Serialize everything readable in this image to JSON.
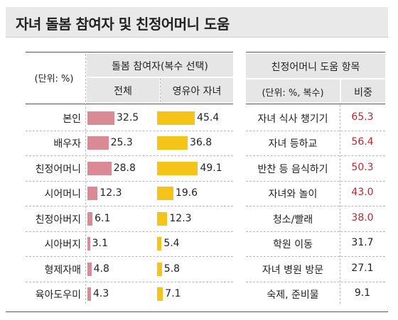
{
  "title": "자녀 돌봄 참여자 및 친정어머니 도움",
  "colors": {
    "all": "#d98a94",
    "infant": "#f4c518",
    "highlight": "#c0272d",
    "normal": "#222222"
  },
  "chart_data": [
    {
      "type": "bar",
      "unit_label": "(단위: %)",
      "group_header": "돌봄 참여자(복수 선택)",
      "categories": [
        "본인",
        "배우자",
        "친정어머니",
        "시어머니",
        "친정아버지",
        "시아버지",
        "형제자매",
        "육아도우미"
      ],
      "series": [
        {
          "name": "전체",
          "values": [
            32.5,
            25.3,
            28.8,
            12.3,
            6.1,
            3.1,
            4.8,
            4.3
          ]
        },
        {
          "name": "영유아 자녀",
          "values": [
            45.4,
            36.8,
            49.1,
            19.6,
            12.3,
            5.4,
            5.8,
            7.1
          ]
        }
      ]
    },
    {
      "type": "table",
      "header": "친정어머니 도움 항목",
      "unit_label": "(단위: %, 복수)",
      "value_header": "비중",
      "rows": [
        {
          "item": "자녀 식사 챙기기",
          "value": "65.3",
          "highlight": true
        },
        {
          "item": "자녀 등하교",
          "value": "56.4",
          "highlight": true
        },
        {
          "item": "반찬 등 음식하기",
          "value": "50.3",
          "highlight": true
        },
        {
          "item": "자녀와 놀이",
          "value": "43.0",
          "highlight": true
        },
        {
          "item": "청소/빨래",
          "value": "38.0",
          "highlight": true
        },
        {
          "item": "학원 이동",
          "value": "31.7",
          "highlight": false
        },
        {
          "item": "자녀 병원 방문",
          "value": "27.1",
          "highlight": false
        },
        {
          "item": "숙제, 준비물",
          "value": "9.1",
          "highlight": false
        }
      ]
    }
  ]
}
